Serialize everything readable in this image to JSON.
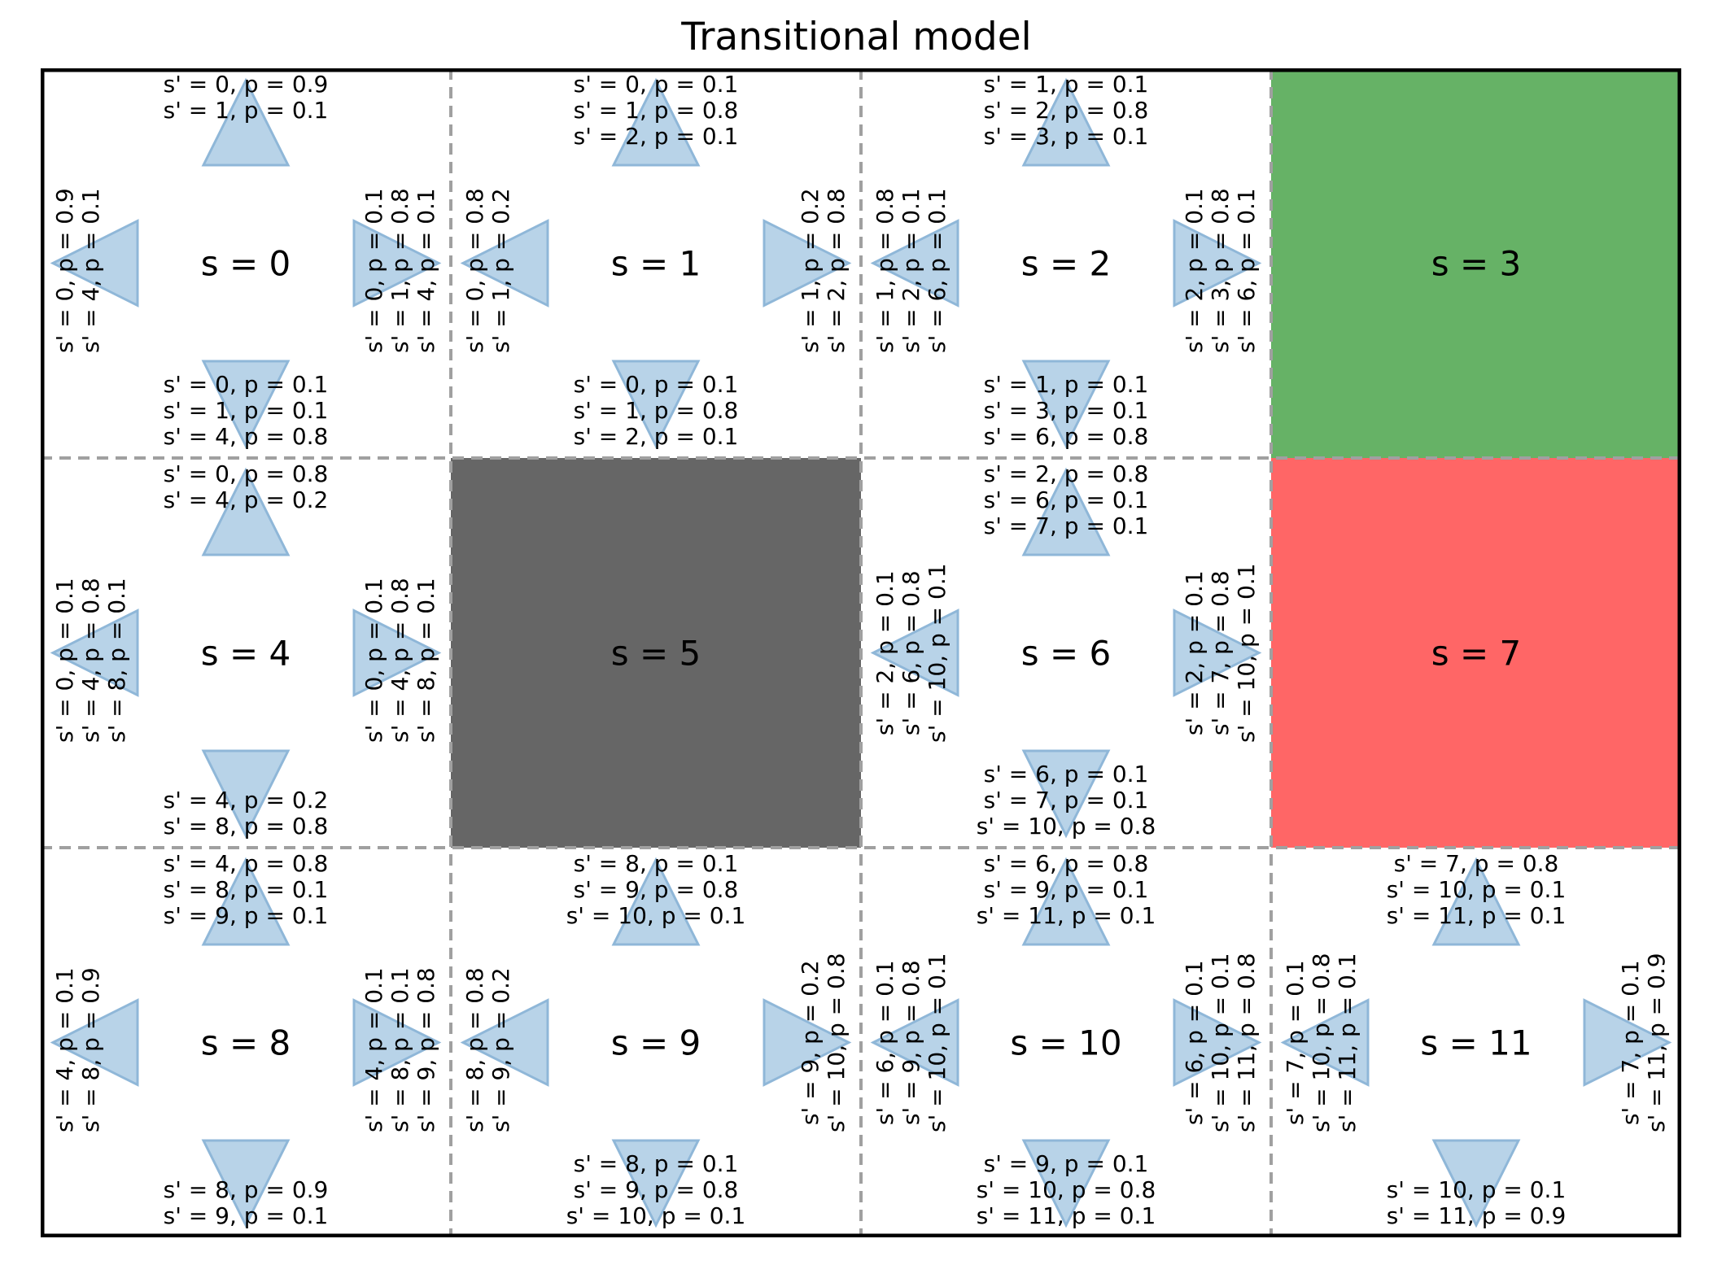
{
  "title": "Transitional model",
  "colors": {
    "goal": "#66b266",
    "trap": "#ff6666",
    "wall": "#666666",
    "arrow_fill": "#b8d3e8",
    "arrow_stroke": "#8fb7d8",
    "grid_line": "#a0a0a0",
    "frame": "#000000"
  },
  "grid": {
    "rows": 3,
    "cols": 4
  },
  "cells": [
    {
      "state": 0,
      "label": "s = 0",
      "kind": "normal",
      "up": [
        "s' = 0, p = 0.9",
        "s' = 1, p = 0.1"
      ],
      "down": [
        "s' = 0, p = 0.1",
        "s' = 1, p = 0.1",
        "s' = 4, p = 0.8"
      ],
      "left": [
        "s' = 0, p = 0.9",
        "s' = 4, p = 0.1"
      ],
      "right": [
        "s' = 0, p = 0.1",
        "s' = 1, p = 0.8",
        "s' = 4, p = 0.1"
      ]
    },
    {
      "state": 1,
      "label": "s = 1",
      "kind": "normal",
      "up": [
        "s' = 0, p = 0.1",
        "s' = 1, p = 0.8",
        "s' = 2, p = 0.1"
      ],
      "down": [
        "s' = 0, p = 0.1",
        "s' = 1, p = 0.8",
        "s' = 2, p = 0.1"
      ],
      "left": [
        "s' = 0, p = 0.8",
        "s' = 1, p = 0.2"
      ],
      "right": [
        "s' = 1, p = 0.2",
        "s' = 2, p = 0.8"
      ]
    },
    {
      "state": 2,
      "label": "s = 2",
      "kind": "normal",
      "up": [
        "s' = 1, p = 0.1",
        "s' = 2, p = 0.8",
        "s' = 3, p = 0.1"
      ],
      "down": [
        "s' = 1, p = 0.1",
        "s' = 3, p = 0.1",
        "s' = 6, p = 0.8"
      ],
      "left": [
        "s' = 1, p = 0.8",
        "s' = 2, p = 0.1",
        "s' = 6, p = 0.1"
      ],
      "right": [
        "s' = 2, p = 0.1",
        "s' = 3, p = 0.8",
        "s' = 6, p = 0.1"
      ]
    },
    {
      "state": 3,
      "label": "s = 3",
      "kind": "goal"
    },
    {
      "state": 4,
      "label": "s = 4",
      "kind": "normal",
      "up": [
        "s' = 0, p = 0.8",
        "s' = 4, p = 0.2"
      ],
      "down": [
        "s' = 4, p = 0.2",
        "s' = 8, p = 0.8"
      ],
      "left": [
        "s' = 0, p = 0.1",
        "s' = 4, p = 0.8",
        "s' = 8, p = 0.1"
      ],
      "right": [
        "s' = 0, p = 0.1",
        "s' = 4, p = 0.8",
        "s' = 8, p = 0.1"
      ]
    },
    {
      "state": 5,
      "label": "s = 5",
      "kind": "wall"
    },
    {
      "state": 6,
      "label": "s = 6",
      "kind": "normal",
      "up": [
        "s' = 2, p = 0.8",
        "s' = 6, p = 0.1",
        "s' = 7, p = 0.1"
      ],
      "down": [
        "s' = 6, p = 0.1",
        "s' = 7, p = 0.1",
        "s' = 10, p = 0.8"
      ],
      "left": [
        "s' = 2, p = 0.1",
        "s' = 6, p = 0.8",
        "s' = 10, p = 0.1"
      ],
      "right": [
        "s' = 2, p = 0.1",
        "s' = 7, p = 0.8",
        "s' = 10, p = 0.1"
      ]
    },
    {
      "state": 7,
      "label": "s = 7",
      "kind": "trap"
    },
    {
      "state": 8,
      "label": "s = 8",
      "kind": "normal",
      "up": [
        "s' = 4, p = 0.8",
        "s' = 8, p = 0.1",
        "s' = 9, p = 0.1"
      ],
      "down": [
        "s' = 8, p = 0.9",
        "s' = 9, p = 0.1"
      ],
      "left": [
        "s' = 4, p = 0.1",
        "s' = 8, p = 0.9"
      ],
      "right": [
        "s' = 4, p = 0.1",
        "s' = 8, p = 0.1",
        "s' = 9, p = 0.8"
      ]
    },
    {
      "state": 9,
      "label": "s = 9",
      "kind": "normal",
      "up": [
        "s' = 8, p = 0.1",
        "s' = 9, p = 0.8",
        "s' = 10, p = 0.1"
      ],
      "down": [
        "s' = 8, p = 0.1",
        "s' = 9, p = 0.8",
        "s' = 10, p = 0.1"
      ],
      "left": [
        "s' = 8, p = 0.8",
        "s' = 9, p = 0.2"
      ],
      "right": [
        "s' = 9, p = 0.2",
        "s' = 10, p = 0.8"
      ]
    },
    {
      "state": 10,
      "label": "s = 10",
      "kind": "normal",
      "up": [
        "s' = 6, p = 0.8",
        "s' = 9, p = 0.1",
        "s' = 11, p = 0.1"
      ],
      "down": [
        "s' = 9, p = 0.1",
        "s' = 10, p = 0.8",
        "s' = 11, p = 0.1"
      ],
      "left": [
        "s' = 6, p = 0.1",
        "s' = 9, p = 0.8",
        "s' = 10, p = 0.1"
      ],
      "right": [
        "s' = 6, p = 0.1",
        "s' = 10, p = 0.1",
        "s' = 11, p = 0.8"
      ]
    },
    {
      "state": 11,
      "label": "s = 11",
      "kind": "normal",
      "up": [
        "s' = 7, p = 0.8",
        "s' = 10, p = 0.1",
        "s' = 11, p = 0.1"
      ],
      "down": [
        "s' = 10, p = 0.1",
        "s' = 11, p = 0.9"
      ],
      "left": [
        "s' = 7, p = 0.1",
        "s' = 10, p = 0.8",
        "s' = 11, p = 0.1"
      ],
      "right": [
        "s' = 7, p = 0.1",
        "s' = 11, p = 0.9"
      ]
    }
  ]
}
